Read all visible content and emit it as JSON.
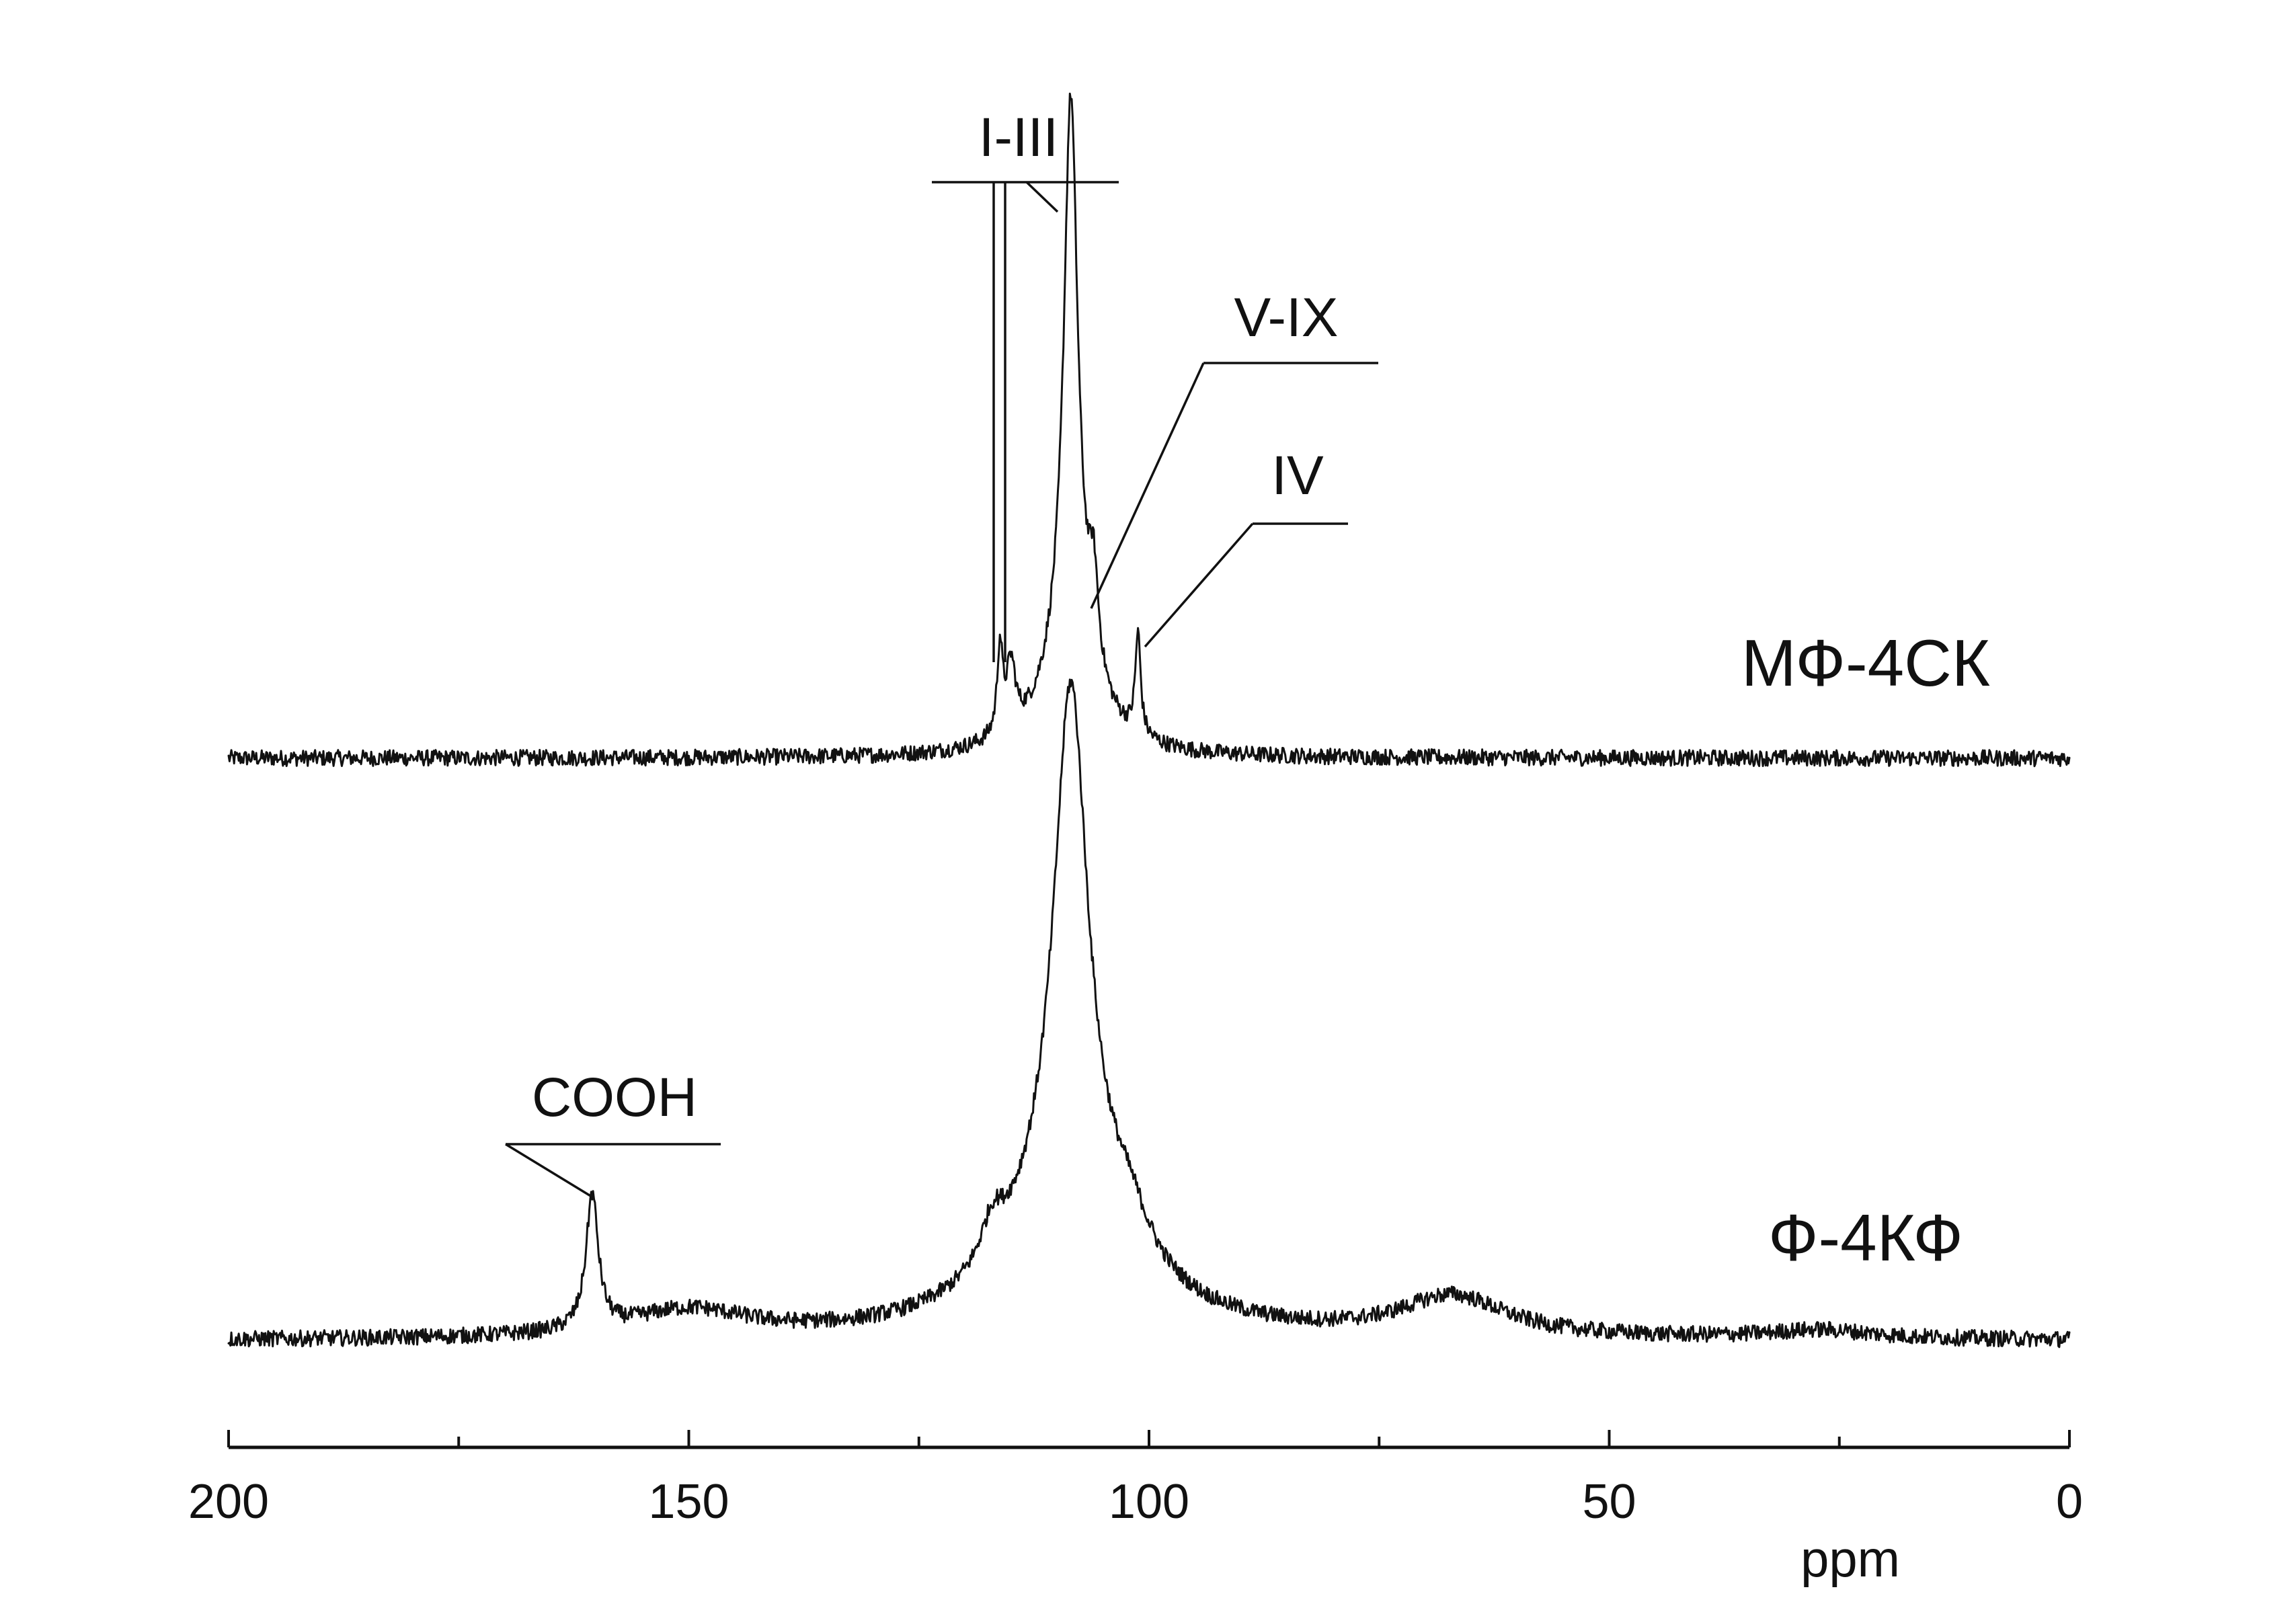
{
  "chart_data": {
    "type": "line",
    "title": "",
    "xlabel": "ppm",
    "ylabel": "",
    "xlim": [
      200,
      0
    ],
    "x_reversed": true,
    "grid": false,
    "x_ticks": [
      {
        "value": 200,
        "label": "200"
      },
      {
        "value": 150,
        "label": "150"
      },
      {
        "value": 100,
        "label": "100"
      },
      {
        "value": 50,
        "label": "50"
      },
      {
        "value": 0,
        "label": "0"
      }
    ],
    "x_minor_ticks": [
      175,
      125,
      75,
      25
    ],
    "series": [
      {
        "name": "МФ-4СК",
        "offset": 2.0,
        "noise": 0.012,
        "peaks": [
          {
            "x": 108.5,
            "height": 0.8,
            "width": 0.9
          },
          {
            "x": 108.5,
            "height": 0.18,
            "width": 3.0
          },
          {
            "x": 116.2,
            "height": 0.13,
            "width": 0.35
          },
          {
            "x": 115.0,
            "height": 0.1,
            "width": 0.6
          },
          {
            "x": 106.0,
            "height": 0.13,
            "width": 0.6
          },
          {
            "x": 101.2,
            "height": 0.15,
            "width": 0.35
          }
        ]
      },
      {
        "name": "Ф-4КФ",
        "offset": 1.0,
        "noise": 0.012,
        "peaks": [
          {
            "x": 160.5,
            "height": 0.2,
            "width": 0.8
          },
          {
            "x": 150.0,
            "height": 0.04,
            "width": 8.0
          },
          {
            "x": 108.5,
            "height": 0.75,
            "width": 2.2
          },
          {
            "x": 108.5,
            "height": 0.22,
            "width": 7.5
          },
          {
            "x": 117.0,
            "height": 0.06,
            "width": 1.5
          },
          {
            "x": 102.0,
            "height": 0.05,
            "width": 2.5
          },
          {
            "x": 67.0,
            "height": 0.06,
            "width": 7.0
          },
          {
            "x": 27.0,
            "height": 0.013,
            "width": 7.0
          }
        ]
      }
    ],
    "annotations": [
      {
        "text": "I-III",
        "target": "МФ-4СК",
        "peaks": [
          116.2,
          115.0,
          108.5
        ]
      },
      {
        "text": "V-IX",
        "target": "МФ-4СК",
        "peaks": [
          106.0
        ]
      },
      {
        "text": "IV",
        "target": "МФ-4СК",
        "peaks": [
          101.2
        ]
      },
      {
        "text": "COOH",
        "target": "Ф-4КФ",
        "peaks": [
          160.5
        ]
      }
    ]
  }
}
